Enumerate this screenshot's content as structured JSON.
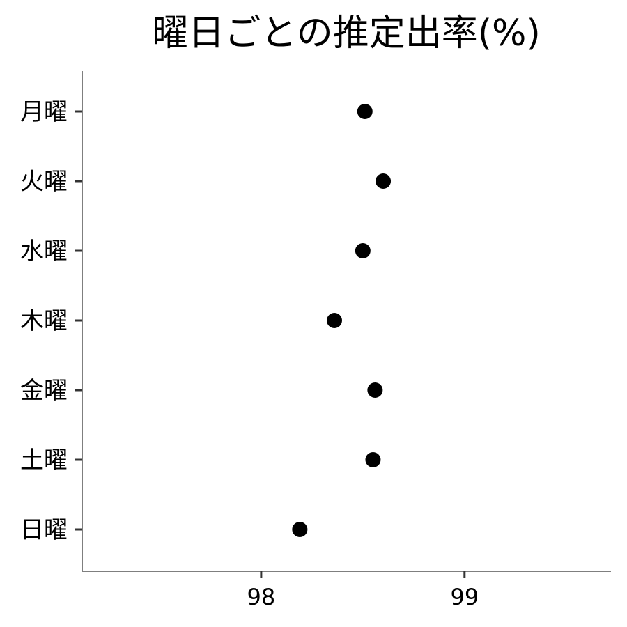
{
  "chart_data": {
    "type": "scatter",
    "title": "曜日ごとの推定出率(%)",
    "xlabel": "",
    "ylabel": "",
    "categories": [
      "月曜",
      "火曜",
      "水曜",
      "木曜",
      "金曜",
      "土曜",
      "日曜"
    ],
    "values": [
      98.51,
      98.6,
      98.5,
      98.36,
      98.56,
      98.55,
      98.19
    ],
    "xlim": [
      97.12,
      99.72
    ],
    "xticks": [
      98,
      99
    ],
    "xtick_labels": [
      "98",
      "99"
    ],
    "grid": false,
    "legend": "none",
    "point_color": "#000000"
  }
}
